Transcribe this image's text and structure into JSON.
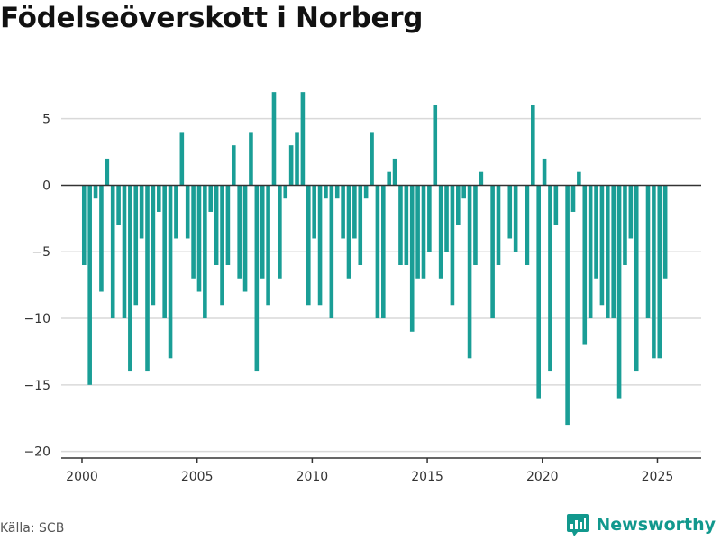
{
  "header": {
    "title": "Födelseöverskott i Norberg"
  },
  "footer": {
    "source": "Källa: SCB",
    "brand": "Newsworthy"
  },
  "colors": {
    "bar": "#1a9e96",
    "brand": "#11988d",
    "grid": "#d9d9d9",
    "axis": "#333333"
  },
  "chart_data": {
    "type": "bar",
    "title": "Födelseöverskott i Norberg",
    "xlabel": "",
    "ylabel": "",
    "x_ticks": [
      2000,
      2005,
      2010,
      2015,
      2020,
      2025
    ],
    "y_ticks": [
      5,
      0,
      -5,
      -10,
      -15,
      -20
    ],
    "xlim": [
      1999.1,
      2026.9
    ],
    "ylim": [
      -20.5,
      8.5
    ],
    "grid": true,
    "series": [
      {
        "values": [
          {
            "x": "2000-01",
            "y": -6
          },
          {
            "x": "2000-04",
            "y": -15
          },
          {
            "x": "2000-07",
            "y": -1
          },
          {
            "x": "2000-10",
            "y": -8
          },
          {
            "x": "2001-01",
            "y": 2
          },
          {
            "x": "2001-04",
            "y": -10
          },
          {
            "x": "2001-07",
            "y": -3
          },
          {
            "x": "2001-10",
            "y": -10
          },
          {
            "x": "2002-01",
            "y": -14
          },
          {
            "x": "2002-04",
            "y": -9
          },
          {
            "x": "2002-07",
            "y": -4
          },
          {
            "x": "2002-10",
            "y": -14
          },
          {
            "x": "2003-01",
            "y": -9
          },
          {
            "x": "2003-04",
            "y": -2
          },
          {
            "x": "2003-07",
            "y": -10
          },
          {
            "x": "2003-10",
            "y": -13
          },
          {
            "x": "2004-01",
            "y": -4
          },
          {
            "x": "2004-04",
            "y": 4
          },
          {
            "x": "2004-07",
            "y": -4
          },
          {
            "x": "2004-10",
            "y": -7
          },
          {
            "x": "2005-01",
            "y": -8
          },
          {
            "x": "2005-04",
            "y": -10
          },
          {
            "x": "2005-07",
            "y": -2
          },
          {
            "x": "2005-10",
            "y": -6
          },
          {
            "x": "2006-01",
            "y": -9
          },
          {
            "x": "2006-04",
            "y": -6
          },
          {
            "x": "2006-07",
            "y": 3
          },
          {
            "x": "2006-10",
            "y": -7
          },
          {
            "x": "2007-01",
            "y": -8
          },
          {
            "x": "2007-04",
            "y": 4
          },
          {
            "x": "2007-07",
            "y": -14
          },
          {
            "x": "2007-10",
            "y": -7
          },
          {
            "x": "2008-01",
            "y": -9
          },
          {
            "x": "2008-04",
            "y": 7
          },
          {
            "x": "2008-07",
            "y": -7
          },
          {
            "x": "2008-10",
            "y": -1
          },
          {
            "x": "2009-01",
            "y": 3
          },
          {
            "x": "2009-04",
            "y": 4
          },
          {
            "x": "2009-07",
            "y": 7
          },
          {
            "x": "2009-10",
            "y": -9
          },
          {
            "x": "2010-01",
            "y": -4
          },
          {
            "x": "2010-04",
            "y": -9
          },
          {
            "x": "2010-07",
            "y": -1
          },
          {
            "x": "2010-10",
            "y": -10
          },
          {
            "x": "2011-01",
            "y": -1
          },
          {
            "x": "2011-04",
            "y": -4
          },
          {
            "x": "2011-07",
            "y": -7
          },
          {
            "x": "2011-10",
            "y": -4
          },
          {
            "x": "2012-01",
            "y": -6
          },
          {
            "x": "2012-04",
            "y": -1
          },
          {
            "x": "2012-07",
            "y": 4
          },
          {
            "x": "2012-10",
            "y": -10
          },
          {
            "x": "2013-01",
            "y": -10
          },
          {
            "x": "2013-04",
            "y": 1
          },
          {
            "x": "2013-07",
            "y": 2
          },
          {
            "x": "2013-10",
            "y": -6
          },
          {
            "x": "2014-01",
            "y": -6
          },
          {
            "x": "2014-04",
            "y": -11
          },
          {
            "x": "2014-07",
            "y": -7
          },
          {
            "x": "2014-10",
            "y": -7
          },
          {
            "x": "2015-01",
            "y": -5
          },
          {
            "x": "2015-04",
            "y": 6
          },
          {
            "x": "2015-07",
            "y": -7
          },
          {
            "x": "2015-10",
            "y": -5
          },
          {
            "x": "2016-01",
            "y": -9
          },
          {
            "x": "2016-04",
            "y": -3
          },
          {
            "x": "2016-07",
            "y": -1
          },
          {
            "x": "2016-10",
            "y": -13
          },
          {
            "x": "2017-01",
            "y": -6
          },
          {
            "x": "2017-04",
            "y": 1
          },
          {
            "x": "2017-07",
            "y": 0
          },
          {
            "x": "2017-10",
            "y": -10
          },
          {
            "x": "2018-01",
            "y": -6
          },
          {
            "x": "2018-04",
            "y": 0
          },
          {
            "x": "2018-07",
            "y": -4
          },
          {
            "x": "2018-10",
            "y": -5
          },
          {
            "x": "2019-01",
            "y": 0
          },
          {
            "x": "2019-04",
            "y": -6
          },
          {
            "x": "2019-07",
            "y": 6
          },
          {
            "x": "2019-10",
            "y": -16
          },
          {
            "x": "2020-01",
            "y": 2
          },
          {
            "x": "2020-04",
            "y": -14
          },
          {
            "x": "2020-07",
            "y": -3
          },
          {
            "x": "2020-10",
            "y": 0
          },
          {
            "x": "2021-01",
            "y": -18
          },
          {
            "x": "2021-04",
            "y": -2
          },
          {
            "x": "2021-07",
            "y": 1
          },
          {
            "x": "2021-10",
            "y": -12
          },
          {
            "x": "2022-01",
            "y": -10
          },
          {
            "x": "2022-04",
            "y": -7
          },
          {
            "x": "2022-07",
            "y": -9
          },
          {
            "x": "2022-10",
            "y": -10
          },
          {
            "x": "2023-01",
            "y": -10
          },
          {
            "x": "2023-04",
            "y": -16
          },
          {
            "x": "2023-07",
            "y": -6
          },
          {
            "x": "2023-10",
            "y": -4
          },
          {
            "x": "2024-01",
            "y": -14
          },
          {
            "x": "2024-04",
            "y": 0
          },
          {
            "x": "2024-07",
            "y": -10
          },
          {
            "x": "2024-10",
            "y": -13
          },
          {
            "x": "2025-01",
            "y": -13
          },
          {
            "x": "2025-04",
            "y": -7
          }
        ]
      }
    ]
  }
}
